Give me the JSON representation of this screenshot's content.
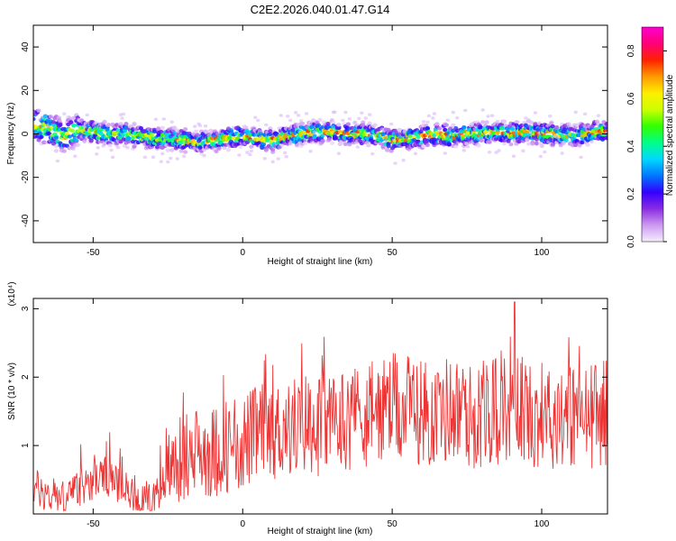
{
  "title": "C2E2.2026.040.01.47.G14",
  "chart_data": [
    {
      "type": "heatmap",
      "title": "C2E2.2026.040.01.47.G14",
      "xlabel": "Height of straight line (km)",
      "ylabel": "Frequency (Hz)",
      "xlim": [
        -70,
        122
      ],
      "ylim": [
        -50,
        50
      ],
      "xticks": [
        -50,
        0,
        50,
        100
      ],
      "xtick_labels": [
        "-50",
        "0",
        "50",
        "100"
      ],
      "yticks": [
        -40,
        -20,
        0,
        20,
        40
      ],
      "ytick_labels": [
        "-40",
        "-20",
        "0",
        "20",
        "40"
      ],
      "ridge": {
        "x": [
          -70,
          -65,
          -60,
          -55,
          -50,
          -45,
          -40,
          -35,
          -30,
          -25,
          -20,
          -15,
          -10,
          -5,
          0,
          5,
          10,
          15,
          20,
          25,
          30,
          35,
          40,
          45,
          50,
          55,
          60,
          65,
          70,
          75,
          80,
          85,
          90,
          95,
          100,
          105,
          110,
          115,
          120,
          122
        ],
        "y": [
          4,
          3,
          -2,
          2,
          1,
          0,
          0,
          -1,
          -2,
          -2,
          -3,
          -4,
          -3,
          -2,
          -1,
          -2,
          -3,
          -1,
          0,
          1,
          1,
          0,
          0,
          -1,
          -3,
          -2,
          -1,
          0,
          -1,
          0,
          0,
          1,
          0,
          1,
          0,
          0,
          -1,
          0,
          1,
          1
        ]
      },
      "colorbar": {
        "label": "Normalized spectral amplitude",
        "range": [
          0,
          0.9
        ],
        "ticks": [
          0.0,
          0.2,
          0.4,
          0.6,
          0.8
        ],
        "tick_labels": [
          "0.0",
          "0.2",
          "0.4",
          "0.6",
          "0.8"
        ],
        "colors": [
          "#f5eefc",
          "#cc99f0",
          "#8a2be2",
          "#3300ff",
          "#0077ff",
          "#00d8ff",
          "#00ff88",
          "#33ff00",
          "#ccff00",
          "#ffee00",
          "#ff9900",
          "#ff2200",
          "#ff0077",
          "#ff00d0"
        ]
      }
    },
    {
      "type": "line",
      "xlabel": "Height of straight line (km)",
      "ylabel": "SNR (10 * v/v)",
      "y_multiplier": "(x10⁴)",
      "xlim": [
        -70,
        122
      ],
      "ylim": [
        0,
        3.15
      ],
      "xticks": [
        -50,
        0,
        50,
        100
      ],
      "xtick_labels": [
        "-50",
        "0",
        "50",
        "100"
      ],
      "yticks": [
        1,
        2,
        3
      ],
      "ytick_labels": [
        "1",
        "2",
        "3"
      ],
      "color": "#ee3333",
      "series": [
        {
          "name": "SNR",
          "x": [
            -70,
            -66,
            -62,
            -58,
            -54,
            -50,
            -46,
            -42,
            -38,
            -34,
            -30,
            -28,
            -26,
            -22,
            -18,
            -14,
            -10,
            -6,
            -2,
            2,
            6,
            10,
            14,
            18,
            22,
            26,
            30,
            34,
            38,
            42,
            46,
            50,
            54,
            58,
            62,
            66,
            70,
            74,
            78,
            82,
            86,
            90,
            91,
            94,
            98,
            102,
            106,
            110,
            114,
            118,
            122
          ],
          "values": [
            0.4,
            0.3,
            0.2,
            0.25,
            0.4,
            0.5,
            0.55,
            0.45,
            0.3,
            0.2,
            0.2,
            0.4,
            0.65,
            0.75,
            0.85,
            0.95,
            0.9,
            1.0,
            1.0,
            1.1,
            1.2,
            1.2,
            1.25,
            1.3,
            1.35,
            1.3,
            1.35,
            1.4,
            1.45,
            1.45,
            1.5,
            1.55,
            1.5,
            1.55,
            1.45,
            1.5,
            1.55,
            1.45,
            1.4,
            1.5,
            1.5,
            1.6,
            1.65,
            1.5,
            1.45,
            1.4,
            1.5,
            1.45,
            1.4,
            1.45,
            1.5
          ]
        }
      ]
    }
  ]
}
